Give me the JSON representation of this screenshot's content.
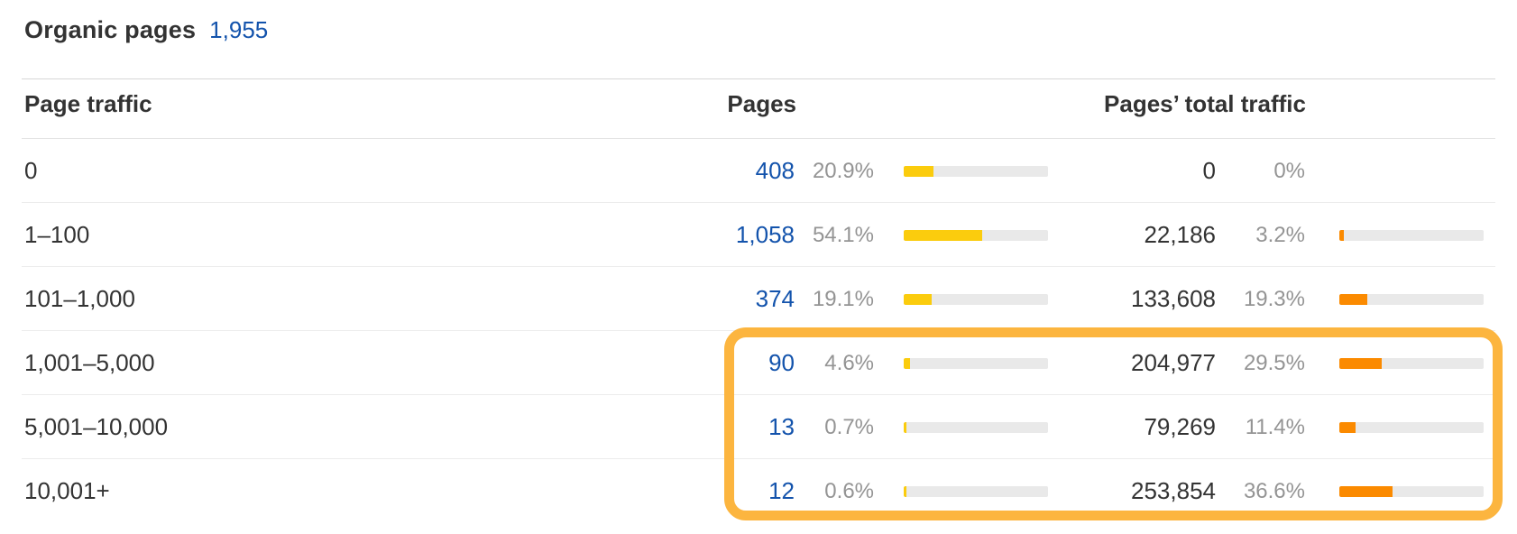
{
  "header": {
    "title": "Organic pages",
    "count": "1,955"
  },
  "columns": {
    "page_traffic": "Page traffic",
    "pages": "Pages",
    "pages_total_traffic": "Pages’ total traffic"
  },
  "table": {
    "rows": [
      {
        "label": "0",
        "pages": "408",
        "pages_pct": "20.9%",
        "pages_bar_pct": 20.9,
        "traffic": "0",
        "traffic_pct": "0%",
        "traffic_bar_pct": null
      },
      {
        "label": "1–100",
        "pages": "1,058",
        "pages_pct": "54.1%",
        "pages_bar_pct": 54.1,
        "traffic": "22,186",
        "traffic_pct": "3.2%",
        "traffic_bar_pct": 3.2
      },
      {
        "label": "101–1,000",
        "pages": "374",
        "pages_pct": "19.1%",
        "pages_bar_pct": 19.1,
        "traffic": "133,608",
        "traffic_pct": "19.3%",
        "traffic_bar_pct": 19.3
      },
      {
        "label": "1,001–5,000",
        "pages": "90",
        "pages_pct": "4.6%",
        "pages_bar_pct": 4.6,
        "traffic": "204,977",
        "traffic_pct": "29.5%",
        "traffic_bar_pct": 29.5
      },
      {
        "label": "5,001–10,000",
        "pages": "13",
        "pages_pct": "0.7%",
        "pages_bar_pct": 0.7,
        "traffic": "79,269",
        "traffic_pct": "11.4%",
        "traffic_bar_pct": 11.4
      },
      {
        "label": "10,001+",
        "pages": "12",
        "pages_pct": "0.6%",
        "pages_bar_pct": 0.6,
        "traffic": "253,854",
        "traffic_pct": "36.6%",
        "traffic_bar_pct": 36.6
      }
    ]
  },
  "colors": {
    "link_blue": "#1353ac",
    "bar_yellow": "#fbcc0d",
    "bar_orange": "#fb8a00",
    "bar_track": "#e9e9e9",
    "highlight_border": "#fcb53f",
    "text_dark": "#333333",
    "text_gray": "#949494"
  }
}
